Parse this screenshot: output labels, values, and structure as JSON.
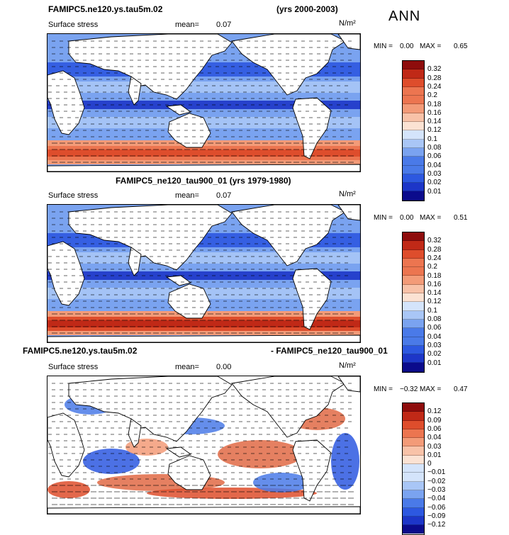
{
  "season_label": "ANN",
  "colors": {
    "pos_scale": [
      "#0b0b8c",
      "#1d36c8",
      "#2d58e0",
      "#4a7ae8",
      "#7aa3f0",
      "#a9c6f6",
      "#d4e4fb",
      "#fbe2d3",
      "#f8c2a8",
      "#f39b78",
      "#ec7550",
      "#de4d2c",
      "#c02917",
      "#8e0c0c"
    ],
    "land": "#ffffff",
    "coast": "#000000"
  },
  "panels": [
    {
      "id": "test",
      "title_left": "FAMIPC5.ne120.ys.tau5m.02",
      "title_right": "(yrs 2000-2003)",
      "variable": "Surface stress",
      "mean_label": "mean=",
      "mean_value": "0.07",
      "units": "N/m²",
      "min_label": "MIN =",
      "min_value": "0.00",
      "max_label": "MAX =",
      "max_value": "0.65",
      "legend_labels": [
        "0.32",
        "0.28",
        "0.24",
        "0.2",
        "0.18",
        "0.16",
        "0.14",
        "0.12",
        "0.1",
        "0.08",
        "0.06",
        "0.04",
        "0.03",
        "0.02",
        "0.01"
      ]
    },
    {
      "id": "control",
      "title_center": "FAMIPC5_ne120_tau900_01 (yrs 1979-1980)",
      "variable": "Surface stress",
      "mean_label": "mean=",
      "mean_value": "0.07",
      "units": "N/m²",
      "min_label": "MIN =",
      "min_value": "0.00",
      "max_label": "MAX =",
      "max_value": "0.51",
      "legend_labels": [
        "0.32",
        "0.28",
        "0.24",
        "0.2",
        "0.18",
        "0.16",
        "0.14",
        "0.12",
        "0.1",
        "0.08",
        "0.06",
        "0.04",
        "0.03",
        "0.02",
        "0.01"
      ]
    },
    {
      "id": "diff",
      "title_left": "FAMIPC5.ne120.ys.tau5m.02",
      "title_right": "- FAMIPC5_ne120_tau900_01",
      "variable": "Surface stress",
      "mean_label": "mean=",
      "mean_value": "0.00",
      "units": "N/m²",
      "min_label": "MIN =",
      "min_value": "−0.32",
      "max_label": "MAX =",
      "max_value": "0.47",
      "legend_labels": [
        "0.12",
        "0.09",
        "0.06",
        "0.04",
        "0.03",
        "0.01",
        "0",
        "−0.01",
        "−0.02",
        "−0.03",
        "−0.04",
        "−0.06",
        "−0.09",
        "−0.12"
      ]
    }
  ]
}
